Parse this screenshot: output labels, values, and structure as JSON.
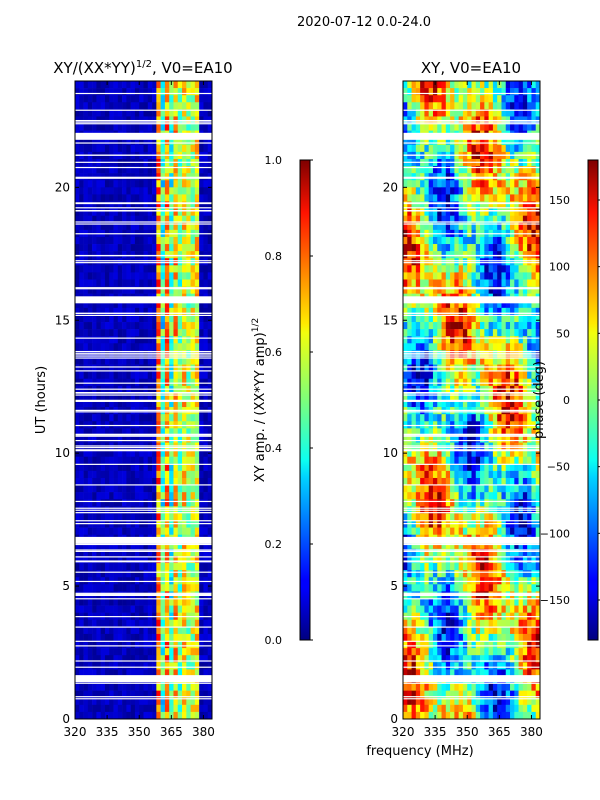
{
  "figure": {
    "suptitle": "2020-07-12 0.0-24.0",
    "shared_xlabel": "frequency (MHz)"
  },
  "chart_data": [
    {
      "type": "heatmap",
      "title": "XY/(XX*YY)^{1/2}, V0=EA10",
      "title_main": "XY/(XX*YY)",
      "title_sup": "1/2",
      "title_tail": ", V0=EA10",
      "xlabel": "frequency (MHz)",
      "ylabel": "UT (hours)",
      "xlim": [
        320,
        384
      ],
      "ylim": [
        0,
        24
      ],
      "xticks": [
        320,
        335,
        350,
        365,
        380
      ],
      "yticks": [
        0,
        5,
        10,
        15,
        20
      ],
      "bright_band_mhz": [
        358,
        378
      ],
      "flagged_hours": [
        1.5,
        6.7,
        15.75,
        21.9
      ],
      "colorbar": {
        "label": "XY amp. / (XX*YY amp)^{1/2}",
        "label_main": "XY amp. / (XX*YY amp)",
        "label_sup": "1/2",
        "range": [
          0.0,
          1.0
        ],
        "ticks": [
          "0.0",
          "0.2",
          "0.4",
          "0.6",
          "0.8",
          "1.0"
        ],
        "colormap": "jet"
      }
    },
    {
      "type": "heatmap",
      "title": "XY, V0=EA10",
      "xlabel": "frequency (MHz)",
      "ylabel": "",
      "xlim": [
        320,
        384
      ],
      "ylim": [
        0,
        24
      ],
      "xticks": [
        320,
        335,
        350,
        365,
        380
      ],
      "yticks": [
        0,
        5,
        10,
        15,
        20
      ],
      "flagged_hours": [
        1.5,
        6.7,
        15.75,
        21.9
      ],
      "colorbar": {
        "label": "phase (deg)",
        "range": [
          -180,
          180
        ],
        "ticks": [
          "150",
          "100",
          "50",
          "0",
          "−50",
          "−100",
          "−150"
        ],
        "colormap": "jet"
      }
    }
  ]
}
